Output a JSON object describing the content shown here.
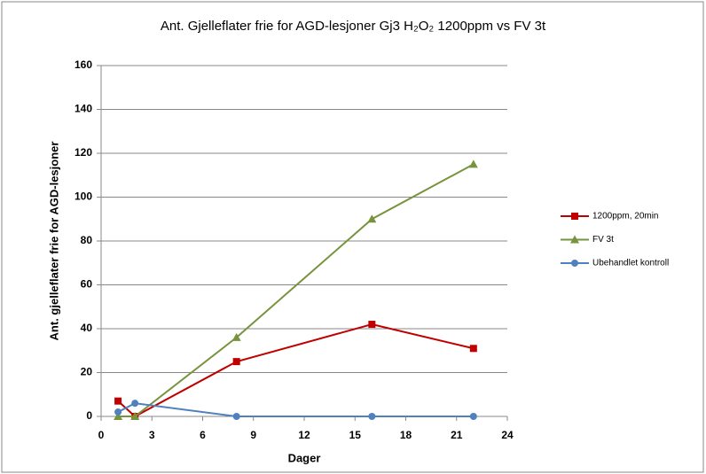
{
  "chart_data": {
    "type": "line",
    "title": "Ant. Gjelleflater frie for AGD-lesjoner Gj3 H₂O₂ 1200ppm vs FV 3t",
    "x_label": "Dager",
    "y_label": "Ant. gjelleflater frie for AGD-lesjoner",
    "x": [
      1,
      2,
      8,
      16,
      22
    ],
    "series": [
      {
        "name": "1200ppm, 20min",
        "color": "#c00000",
        "marker": "square",
        "values": [
          7,
          0,
          25,
          42,
          31
        ]
      },
      {
        "name": "FV 3t",
        "color": "#77933c",
        "marker": "triangle",
        "values": [
          0,
          0,
          36,
          90,
          115
        ]
      },
      {
        "name": "Ubehandlet kontroll",
        "color": "#4f81bd",
        "marker": "circle",
        "values": [
          2,
          6,
          0,
          0,
          0
        ]
      }
    ],
    "xlim": [
      0,
      24
    ],
    "xticks": [
      0,
      3,
      6,
      9,
      12,
      15,
      18,
      21,
      24
    ],
    "ylim": [
      0,
      160
    ],
    "yticks": [
      0,
      20,
      40,
      60,
      80,
      100,
      120,
      140,
      160
    ],
    "grid": true,
    "legend": "right"
  }
}
